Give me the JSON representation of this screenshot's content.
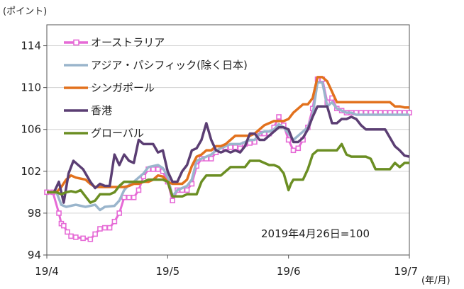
{
  "chart_data": {
    "type": "line",
    "ylabel": "(ポイント)",
    "xlabel": "(年/月)",
    "note": "2019年4月26日=100",
    "ylim": [
      94,
      116
    ],
    "yticks": [
      94,
      98,
      102,
      106,
      110,
      114
    ],
    "xticks": [
      "19/4",
      "19/5",
      "19/6",
      "19/7"
    ],
    "xtick_positions": [
      0,
      1,
      2,
      3
    ],
    "xlim": [
      0,
      3
    ],
    "series": [
      {
        "name": "オーストラリア",
        "color": "#e66ad6",
        "marker": "square",
        "x": [
          0,
          0.05,
          0.1,
          0.12,
          0.14,
          0.17,
          0.2,
          0.24,
          0.3,
          0.36,
          0.4,
          0.44,
          0.48,
          0.52,
          0.56,
          0.6,
          0.64,
          0.68,
          0.72,
          0.76,
          0.8,
          0.84,
          0.88,
          0.92,
          0.96,
          1.0,
          1.04,
          1.08,
          1.12,
          1.16,
          1.2,
          1.24,
          1.28,
          1.32,
          1.36,
          1.4,
          1.44,
          1.48,
          1.52,
          1.56,
          1.6,
          1.64,
          1.68,
          1.72,
          1.76,
          1.8,
          1.84,
          1.88,
          1.92,
          1.96,
          2.0,
          2.04,
          2.08,
          2.12,
          2.16,
          2.2,
          2.24,
          2.28,
          2.32,
          2.36,
          2.4,
          2.44,
          2.48,
          2.52,
          2.56,
          2.6,
          2.64,
          2.68,
          2.72,
          2.76,
          2.8,
          2.84,
          2.88,
          2.92,
          2.96,
          3.0
        ],
        "values": [
          100,
          100,
          98,
          97,
          96.8,
          96.2,
          95.8,
          95.7,
          95.6,
          95.5,
          96.0,
          96.5,
          96.6,
          96.6,
          97.2,
          98.0,
          99.5,
          99.5,
          99.5,
          100.2,
          101.5,
          102.2,
          102.2,
          102.2,
          102.0,
          101.0,
          99.2,
          100.2,
          100.2,
          100.2,
          100.8,
          102.5,
          103.2,
          103.2,
          103.2,
          103.8,
          104.0,
          104.3,
          104.3,
          104.3,
          104.2,
          104.6,
          104.7,
          104.8,
          105.6,
          105.6,
          105.6,
          106.2,
          107.2,
          106.4,
          105.0,
          104.0,
          104.2,
          105.0,
          106.2,
          108.0,
          110.8,
          110.8,
          108.6,
          109.0,
          108.0,
          107.8,
          107.6,
          107.6,
          107.6,
          107.6,
          107.6,
          107.6,
          107.6,
          107.6,
          107.6,
          107.6,
          107.6,
          107.6,
          107.6,
          107.6
        ]
      },
      {
        "name": "アジア・パシフィック(除く日本)",
        "color": "#9ab5cc",
        "marker": "none",
        "x": [
          0,
          0.08,
          0.12,
          0.16,
          0.24,
          0.32,
          0.4,
          0.44,
          0.48,
          0.56,
          0.6,
          0.64,
          0.68,
          0.72,
          0.8,
          0.84,
          0.88,
          0.92,
          0.96,
          1.0,
          1.04,
          1.08,
          1.12,
          1.16,
          1.2,
          1.24,
          1.28,
          1.32,
          1.36,
          1.4,
          1.44,
          1.48,
          1.52,
          1.56,
          1.6,
          1.64,
          1.68,
          1.72,
          1.76,
          1.8,
          1.84,
          1.88,
          1.92,
          1.96,
          2.0,
          2.04,
          2.08,
          2.12,
          2.16,
          2.2,
          2.24,
          2.28,
          2.32,
          2.36,
          2.4,
          2.44,
          2.48,
          2.52,
          2.56,
          2.6,
          2.64,
          2.68,
          2.72,
          2.76,
          2.8,
          2.84,
          2.88,
          2.92,
          2.96,
          3.0
        ],
        "values": [
          100,
          100,
          98.8,
          98.6,
          98.8,
          98.6,
          98.8,
          98.3,
          98.6,
          98.7,
          99.2,
          100.2,
          100.7,
          101.0,
          101.8,
          102.4,
          102.5,
          102.6,
          102.3,
          101.5,
          99.6,
          100.2,
          100.4,
          100.6,
          101.2,
          103.0,
          103.2,
          103.4,
          103.6,
          104.0,
          104.2,
          104.4,
          104.6,
          104.6,
          104.6,
          104.8,
          105.0,
          105.0,
          105.6,
          105.8,
          105.8,
          106.0,
          106.5,
          106.2,
          105.6,
          105.0,
          105.4,
          105.8,
          106.2,
          107.4,
          110.5,
          110.5,
          108.2,
          108.6,
          108.0,
          107.8,
          107.6,
          107.6,
          107.4,
          107.4,
          107.4,
          107.4,
          107.4,
          107.4,
          107.4,
          107.4,
          107.4,
          107.4,
          107.4,
          107.4
        ]
      },
      {
        "name": "シンガポール",
        "color": "#e2711d",
        "marker": "none",
        "x": [
          0,
          0.08,
          0.12,
          0.16,
          0.2,
          0.24,
          0.32,
          0.36,
          0.4,
          0.44,
          0.48,
          0.52,
          0.56,
          0.6,
          0.64,
          0.68,
          0.72,
          0.76,
          0.8,
          0.84,
          0.88,
          0.92,
          0.96,
          1.0,
          1.04,
          1.08,
          1.12,
          1.16,
          1.2,
          1.24,
          1.28,
          1.32,
          1.36,
          1.4,
          1.44,
          1.48,
          1.52,
          1.56,
          1.6,
          1.64,
          1.68,
          1.72,
          1.76,
          1.8,
          1.84,
          1.88,
          1.92,
          1.96,
          2.0,
          2.04,
          2.08,
          2.12,
          2.16,
          2.2,
          2.24,
          2.28,
          2.32,
          2.36,
          2.4,
          2.44,
          2.48,
          2.52,
          2.56,
          2.6,
          2.64,
          2.68,
          2.72,
          2.76,
          2.8,
          2.84,
          2.88,
          2.92,
          2.96,
          3.0
        ],
        "values": [
          100,
          100,
          100.5,
          101.2,
          101.6,
          101.4,
          101.2,
          100.8,
          100.5,
          100.5,
          100.5,
          100.5,
          100.5,
          100.5,
          100.5,
          100.6,
          100.8,
          100.8,
          101.0,
          101.0,
          101.2,
          101.6,
          101.5,
          101.0,
          100.8,
          100.8,
          100.8,
          101.2,
          102.5,
          103.4,
          103.6,
          104.0,
          104.0,
          104.4,
          104.4,
          104.6,
          105.0,
          105.4,
          105.4,
          105.4,
          105.4,
          105.6,
          106.0,
          106.4,
          106.6,
          106.8,
          106.8,
          106.8,
          107.0,
          107.6,
          108.0,
          108.4,
          108.4,
          109.0,
          111.0,
          111.0,
          110.6,
          109.6,
          108.6,
          108.6,
          108.6,
          108.6,
          108.6,
          108.6,
          108.6,
          108.6,
          108.6,
          108.6,
          108.6,
          108.6,
          108.2,
          108.2,
          108.1,
          108.1
        ]
      },
      {
        "name": "香港",
        "color": "#5b3e73",
        "marker": "none",
        "x": [
          0,
          0.06,
          0.1,
          0.14,
          0.18,
          0.22,
          0.26,
          0.3,
          0.36,
          0.4,
          0.44,
          0.48,
          0.52,
          0.56,
          0.6,
          0.64,
          0.68,
          0.72,
          0.76,
          0.8,
          0.84,
          0.88,
          0.92,
          0.96,
          1.0,
          1.04,
          1.08,
          1.12,
          1.16,
          1.2,
          1.24,
          1.28,
          1.32,
          1.36,
          1.4,
          1.44,
          1.48,
          1.52,
          1.56,
          1.6,
          1.64,
          1.68,
          1.72,
          1.76,
          1.8,
          1.84,
          1.88,
          1.92,
          1.96,
          2.0,
          2.04,
          2.08,
          2.12,
          2.16,
          2.2,
          2.24,
          2.28,
          2.32,
          2.36,
          2.4,
          2.44,
          2.48,
          2.52,
          2.56,
          2.6,
          2.64,
          2.68,
          2.72,
          2.76,
          2.8,
          2.84,
          2.88,
          2.92,
          2.96,
          3.0
        ],
        "values": [
          100,
          100,
          101.0,
          99.0,
          101.8,
          103.0,
          102.6,
          102.2,
          101.0,
          100.4,
          100.8,
          100.6,
          100.6,
          103.6,
          102.6,
          103.6,
          103.0,
          102.8,
          105.0,
          104.6,
          104.6,
          104.6,
          103.8,
          104.0,
          102.0,
          101.0,
          101.0,
          102.0,
          102.6,
          104.0,
          104.2,
          105.0,
          106.6,
          105.0,
          104.0,
          103.8,
          104.0,
          103.8,
          104.0,
          103.8,
          104.4,
          105.6,
          105.6,
          105.0,
          105.0,
          105.4,
          105.8,
          106.2,
          106.2,
          106.0,
          104.8,
          104.8,
          105.2,
          106.0,
          107.2,
          108.2,
          108.2,
          108.2,
          106.6,
          106.6,
          107.0,
          107.0,
          107.2,
          107.0,
          106.4,
          106.0,
          106.0,
          106.0,
          106.0,
          106.0,
          105.2,
          104.4,
          104.0,
          103.5,
          103.4
        ]
      },
      {
        "name": "グローバル",
        "color": "#6b8e23",
        "marker": "none",
        "x": [
          0,
          0.08,
          0.12,
          0.16,
          0.2,
          0.24,
          0.28,
          0.32,
          0.36,
          0.4,
          0.44,
          0.48,
          0.52,
          0.56,
          0.6,
          0.64,
          0.68,
          0.72,
          0.76,
          0.8,
          0.84,
          0.88,
          0.92,
          0.96,
          1.0,
          1.04,
          1.08,
          1.12,
          1.16,
          1.2,
          1.24,
          1.28,
          1.32,
          1.36,
          1.4,
          1.44,
          1.48,
          1.52,
          1.56,
          1.6,
          1.64,
          1.68,
          1.72,
          1.76,
          1.8,
          1.84,
          1.88,
          1.92,
          1.96,
          2.0,
          2.02,
          2.04,
          2.08,
          2.12,
          2.16,
          2.2,
          2.24,
          2.28,
          2.32,
          2.36,
          2.4,
          2.44,
          2.48,
          2.52,
          2.56,
          2.6,
          2.64,
          2.68,
          2.72,
          2.76,
          2.8,
          2.84,
          2.88,
          2.92,
          2.96,
          3.0
        ],
        "values": [
          100,
          100,
          99.8,
          100.0,
          100.1,
          100.0,
          100.2,
          99.6,
          99.0,
          99.2,
          99.8,
          99.8,
          99.8,
          100.0,
          100.6,
          101.0,
          101.0,
          101.0,
          101.0,
          101.0,
          101.2,
          101.2,
          101.2,
          101.2,
          101.0,
          99.6,
          99.6,
          99.6,
          99.8,
          99.8,
          99.8,
          101.0,
          101.6,
          101.6,
          101.6,
          101.6,
          102.0,
          102.4,
          102.4,
          102.4,
          102.4,
          103.0,
          103.0,
          103.0,
          102.8,
          102.6,
          102.6,
          102.4,
          101.8,
          100.2,
          100.8,
          101.2,
          101.2,
          101.2,
          102.2,
          103.6,
          104.0,
          104.0,
          104.0,
          104.0,
          104.0,
          104.6,
          103.6,
          103.4,
          103.4,
          103.4,
          103.4,
          103.2,
          102.2,
          102.2,
          102.2,
          102.2,
          102.8,
          102.4,
          102.8,
          102.8
        ]
      }
    ]
  }
}
